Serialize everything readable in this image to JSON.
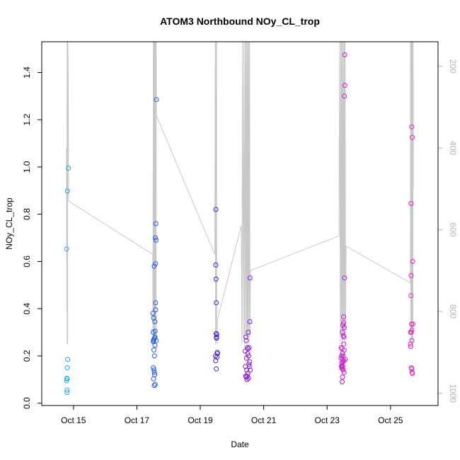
{
  "chart_data": {
    "type": "scatter",
    "title": "ATOM3 Northbound NOy_CL_trop",
    "xlabel": "Date",
    "ylabel": "NOy_CL_trop",
    "xlim": [
      "2017-10-14T00:00",
      "2017-10-26T12:00"
    ],
    "ylim": [
      -0.01,
      1.53
    ],
    "y_ticks": [
      0.0,
      0.2,
      0.4,
      0.6,
      0.8,
      1.0,
      1.2,
      1.4
    ],
    "y_tick_labels": [
      "0.0",
      "0.2",
      "0.4",
      "0.6",
      "0.8",
      "1.0",
      "1.2",
      "1.4"
    ],
    "x_ticks": [
      "2017-10-15",
      "2017-10-17",
      "2017-10-19",
      "2017-10-21",
      "2017-10-23",
      "2017-10-25"
    ],
    "x_tick_labels": [
      "Oct 15",
      "Oct 17",
      "Oct 19",
      "Oct 21",
      "Oct 23",
      "Oct 25"
    ],
    "y2lim": [
      1030,
      140
    ],
    "y2_ticks": [
      200,
      400,
      600,
      800,
      1000
    ],
    "y2_tick_labels": [
      "200",
      "400",
      "600",
      "800",
      "1000"
    ],
    "grid": false,
    "colors": {
      "line": "#c8c8c8",
      "right_axis": "#b3b3b3",
      "flight1": "#1ea8e8",
      "flight2": "#2858e6",
      "flight3": "#3f22e0",
      "flight4": "#8a1ad8",
      "flight5": "#cc18d0",
      "flight6": "#e020c8"
    },
    "series": [
      {
        "color": "flight1",
        "points": [
          [
            "2017-10-14T18:50",
            0.653
          ],
          [
            "2017-10-14T18:55",
            0.095
          ],
          [
            "2017-10-14T19:00",
            0.105
          ],
          [
            "2017-10-14T19:05",
            0.055
          ],
          [
            "2017-10-14T19:10",
            0.045
          ],
          [
            "2017-10-14T19:15",
            0.103
          ],
          [
            "2017-10-14T19:20",
            0.15
          ],
          [
            "2017-10-14T19:25",
            0.898
          ],
          [
            "2017-10-14T19:35",
            0.185
          ],
          [
            "2017-10-14T20:10",
            0.995
          ]
        ]
      },
      {
        "color": "flight2",
        "points": [
          [
            "2017-10-17T12:10",
            0.38
          ],
          [
            "2017-10-17T12:20",
            0.3
          ],
          [
            "2017-10-17T12:25",
            0.26
          ],
          [
            "2017-10-17T12:30",
            0.15
          ],
          [
            "2017-10-17T12:35",
            0.265
          ],
          [
            "2017-10-17T12:40",
            0.103
          ],
          [
            "2017-10-17T12:45",
            0.36
          ],
          [
            "2017-10-17T12:50",
            0.27
          ],
          [
            "2017-10-17T12:55",
            0.225
          ],
          [
            "2017-10-17T13:00",
            0.14
          ],
          [
            "2017-10-17T13:05",
            0.58
          ],
          [
            "2017-10-17T13:10",
            0.075
          ],
          [
            "2017-10-17T13:15",
            0.13
          ],
          [
            "2017-10-17T13:20",
            0.2
          ],
          [
            "2017-10-17T13:25",
            0.275
          ],
          [
            "2017-10-17T13:30",
            0.12
          ],
          [
            "2017-10-17T13:35",
            0.345
          ],
          [
            "2017-10-17T13:40",
            0.245
          ],
          [
            "2017-10-17T13:45",
            0.28
          ],
          [
            "2017-10-17T13:50",
            0.305
          ],
          [
            "2017-10-17T13:55",
            0.08
          ],
          [
            "2017-10-17T14:00",
            0.7
          ],
          [
            "2017-10-17T14:05",
            0.59
          ],
          [
            "2017-10-17T14:10",
            0.425
          ],
          [
            "2017-10-17T14:15",
            0.395
          ],
          [
            "2017-10-17T14:20",
            0.76
          ],
          [
            "2017-10-17T14:30",
            0.69
          ],
          [
            "2017-10-17T14:40",
            0.265
          ],
          [
            "2017-10-17T14:50",
            1.285
          ]
        ]
      },
      {
        "color": "flight3",
        "points": [
          [
            "2017-10-19T11:30",
            0.2
          ],
          [
            "2017-10-19T11:40",
            0.18
          ],
          [
            "2017-10-19T11:45",
            0.585
          ],
          [
            "2017-10-19T11:50",
            0.82
          ],
          [
            "2017-10-19T11:55",
            0.525
          ],
          [
            "2017-10-19T12:00",
            0.295
          ],
          [
            "2017-10-19T12:05",
            0.145
          ],
          [
            "2017-10-19T12:10",
            0.425
          ],
          [
            "2017-10-19T12:15",
            0.28
          ],
          [
            "2017-10-19T12:20",
            0.275
          ],
          [
            "2017-10-19T12:30",
            0.29
          ],
          [
            "2017-10-19T12:40",
            0.195
          ],
          [
            "2017-10-19T12:50",
            0.215
          ],
          [
            "2017-10-19T13:00",
            0.21
          ]
        ]
      },
      {
        "color": "flight4",
        "points": [
          [
            "2017-10-20T10:00",
            0.22
          ],
          [
            "2017-10-20T10:10",
            0.155
          ],
          [
            "2017-10-20T10:20",
            0.115
          ],
          [
            "2017-10-20T10:30",
            0.28
          ],
          [
            "2017-10-20T10:40",
            0.11
          ],
          [
            "2017-10-20T10:50",
            0.265
          ],
          [
            "2017-10-20T11:00",
            0.19
          ],
          [
            "2017-10-20T11:10",
            0.14
          ],
          [
            "2017-10-20T11:20",
            0.1
          ],
          [
            "2017-10-20T11:30",
            0.235
          ],
          [
            "2017-10-20T11:40",
            0.115
          ],
          [
            "2017-10-20T11:50",
            0.21
          ],
          [
            "2017-10-20T12:00",
            0.125
          ],
          [
            "2017-10-20T12:10",
            0.23
          ],
          [
            "2017-10-20T12:20",
            0.3
          ],
          [
            "2017-10-20T12:30",
            0.105
          ],
          [
            "2017-10-20T12:40",
            0.2
          ],
          [
            "2017-10-20T12:50",
            0.165
          ],
          [
            "2017-10-20T13:00",
            0.235
          ],
          [
            "2017-10-20T13:10",
            0.155
          ],
          [
            "2017-10-20T13:20",
            0.175
          ],
          [
            "2017-10-20T13:30",
            0.345
          ],
          [
            "2017-10-20T13:40",
            0.53
          ],
          [
            "2017-10-20T13:50",
            0.14
          ]
        ]
      },
      {
        "color": "flight5",
        "points": [
          [
            "2017-10-23T10:30",
            0.19
          ],
          [
            "2017-10-23T10:40",
            0.235
          ],
          [
            "2017-10-23T10:50",
            0.155
          ],
          [
            "2017-10-23T11:00",
            0.2
          ],
          [
            "2017-10-23T11:05",
            0.17
          ],
          [
            "2017-10-23T11:10",
            0.15
          ],
          [
            "2017-10-23T11:15",
            0.23
          ],
          [
            "2017-10-23T11:20",
            0.16
          ],
          [
            "2017-10-23T11:25",
            0.09
          ],
          [
            "2017-10-23T11:30",
            0.145
          ],
          [
            "2017-10-23T11:35",
            0.3
          ],
          [
            "2017-10-23T11:40",
            0.21
          ],
          [
            "2017-10-23T11:45",
            0.11
          ],
          [
            "2017-10-23T11:50",
            0.185
          ],
          [
            "2017-10-23T11:55",
            0.155
          ],
          [
            "2017-10-23T12:00",
            0.33
          ],
          [
            "2017-10-23T12:05",
            0.175
          ],
          [
            "2017-10-23T12:10",
            0.2
          ],
          [
            "2017-10-23T12:15",
            0.14
          ],
          [
            "2017-10-23T12:20",
            0.285
          ],
          [
            "2017-10-23T12:25",
            0.365
          ],
          [
            "2017-10-23T12:30",
            0.34
          ],
          [
            "2017-10-23T12:35",
            0.18
          ],
          [
            "2017-10-23T12:40",
            0.25
          ],
          [
            "2017-10-23T12:45",
            0.28
          ],
          [
            "2017-10-23T12:50",
            0.13
          ],
          [
            "2017-10-23T12:55",
            0.225
          ],
          [
            "2017-10-23T13:00",
            0.32
          ],
          [
            "2017-10-23T13:05",
            1.3
          ],
          [
            "2017-10-23T13:10",
            0.53
          ],
          [
            "2017-10-23T13:20",
            1.475
          ],
          [
            "2017-10-23T13:30",
            1.345
          ],
          [
            "2017-10-23T13:40",
            0.185
          ]
        ]
      },
      {
        "color": "flight6",
        "points": [
          [
            "2017-10-25T15:00",
            0.25
          ],
          [
            "2017-10-25T15:10",
            0.3
          ],
          [
            "2017-10-25T15:20",
            0.24
          ],
          [
            "2017-10-25T15:30",
            0.455
          ],
          [
            "2017-10-25T15:35",
            0.54
          ],
          [
            "2017-10-25T15:40",
            0.845
          ],
          [
            "2017-10-25T15:45",
            0.3
          ],
          [
            "2017-10-25T15:50",
            0.15
          ],
          [
            "2017-10-25T15:55",
            0.335
          ],
          [
            "2017-10-25T16:00",
            0.145
          ],
          [
            "2017-10-25T16:05",
            1.17
          ],
          [
            "2017-10-25T16:10",
            0.265
          ],
          [
            "2017-10-25T16:15",
            0.31
          ],
          [
            "2017-10-25T16:20",
            0.13
          ],
          [
            "2017-10-25T16:30",
            1.125
          ],
          [
            "2017-10-25T16:40",
            0.125
          ],
          [
            "2017-10-25T16:50",
            0.6
          ],
          [
            "2017-10-25T17:00",
            0.335
          ]
        ]
      }
    ],
    "pressure_line": {
      "axis": "right",
      "points": [
        [
          "2017-10-14T18:40",
          400
        ],
        [
          "2017-10-14T19:00",
          800
        ],
        [
          "2017-10-14T19:10",
          140
        ],
        [
          "2017-10-14T19:15",
          880
        ],
        [
          "2017-10-14T19:20",
          140
        ],
        [
          "2017-10-14T19:25",
          750
        ],
        [
          "2017-10-14T19:30",
          140
        ],
        [
          "2017-10-14T19:35",
          880
        ],
        [
          "2017-10-14T19:40",
          140
        ],
        [
          "2017-10-14T20:00",
          180
        ],
        [
          "2017-10-14T20:20",
          530
        ],
        [
          "2017-10-17T12:00",
          660
        ],
        [
          "2017-10-17T12:10",
          880
        ],
        [
          "2017-10-17T12:15",
          460
        ],
        [
          "2017-10-17T12:20",
          870
        ],
        [
          "2017-10-17T12:25",
          140
        ],
        [
          "2017-10-17T12:35",
          850
        ],
        [
          "2017-10-17T12:40",
          140
        ],
        [
          "2017-10-17T12:50",
          860
        ],
        [
          "2017-10-17T13:00",
          140
        ],
        [
          "2017-10-17T13:10",
          820
        ],
        [
          "2017-10-17T13:20",
          140
        ],
        [
          "2017-10-17T13:30",
          880
        ],
        [
          "2017-10-17T13:40",
          140
        ],
        [
          "2017-10-17T13:50",
          860
        ],
        [
          "2017-10-17T14:00",
          140
        ],
        [
          "2017-10-17T14:10",
          820
        ],
        [
          "2017-10-17T14:20",
          140
        ],
        [
          "2017-10-17T14:30",
          870
        ],
        [
          "2017-10-17T14:40",
          140
        ],
        [
          "2017-10-17T14:45",
          320
        ],
        [
          "2017-10-19T11:00",
          660
        ],
        [
          "2017-10-19T11:20",
          140
        ],
        [
          "2017-10-19T11:30",
          880
        ],
        [
          "2017-10-19T11:40",
          140
        ],
        [
          "2017-10-19T11:50",
          850
        ],
        [
          "2017-10-19T12:00",
          140
        ],
        [
          "2017-10-19T12:10",
          820
        ],
        [
          "2017-10-19T12:20",
          140
        ],
        [
          "2017-10-19T12:30",
          880
        ],
        [
          "2017-10-19T13:00",
          820
        ],
        [
          "2017-10-20T07:00",
          590
        ],
        [
          "2017-10-20T07:30",
          880
        ],
        [
          "2017-10-20T08:00",
          140
        ],
        [
          "2017-10-20T08:30",
          860
        ],
        [
          "2017-10-20T09:00",
          140
        ],
        [
          "2017-10-20T09:30",
          880
        ],
        [
          "2017-10-20T10:00",
          140
        ],
        [
          "2017-10-20T10:20",
          860
        ],
        [
          "2017-10-20T10:40",
          140
        ],
        [
          "2017-10-20T11:00",
          880
        ],
        [
          "2017-10-20T11:20",
          140
        ],
        [
          "2017-10-20T11:40",
          870
        ],
        [
          "2017-10-20T12:00",
          140
        ],
        [
          "2017-10-20T12:20",
          860
        ],
        [
          "2017-10-20T12:40",
          140
        ],
        [
          "2017-10-20T13:00",
          880
        ],
        [
          "2017-10-20T13:20",
          140
        ],
        [
          "2017-10-20T13:40",
          860
        ],
        [
          "2017-10-20T14:00",
          700
        ],
        [
          "2017-10-23T09:00",
          615
        ],
        [
          "2017-10-23T09:30",
          140
        ],
        [
          "2017-10-23T10:00",
          880
        ],
        [
          "2017-10-23T10:20",
          140
        ],
        [
          "2017-10-23T10:40",
          860
        ],
        [
          "2017-10-23T11:00",
          140
        ],
        [
          "2017-10-23T11:20",
          880
        ],
        [
          "2017-10-23T11:40",
          140
        ],
        [
          "2017-10-23T12:00",
          870
        ],
        [
          "2017-10-23T12:20",
          140
        ],
        [
          "2017-10-23T12:40",
          860
        ],
        [
          "2017-10-23T13:00",
          140
        ],
        [
          "2017-10-23T13:20",
          880
        ],
        [
          "2017-10-23T13:40",
          140
        ],
        [
          "2017-10-23T14:00",
          860
        ],
        [
          "2017-10-23T14:20",
          640
        ],
        [
          "2017-10-25T15:00",
          730
        ],
        [
          "2017-10-25T15:10",
          140
        ],
        [
          "2017-10-25T15:20",
          880
        ],
        [
          "2017-10-25T15:30",
          140
        ],
        [
          "2017-10-25T15:40",
          850
        ],
        [
          "2017-10-25T15:50",
          140
        ],
        [
          "2017-10-25T16:00",
          870
        ],
        [
          "2017-10-25T16:10",
          140
        ],
        [
          "2017-10-25T16:20",
          880
        ],
        [
          "2017-10-25T16:30",
          140
        ],
        [
          "2017-10-25T16:40",
          860
        ],
        [
          "2017-10-25T16:50",
          140
        ],
        [
          "2017-10-25T17:00",
          880
        ],
        [
          "2017-10-25T17:10",
          140
        ],
        [
          "2017-10-25T17:20",
          500
        ]
      ]
    }
  }
}
